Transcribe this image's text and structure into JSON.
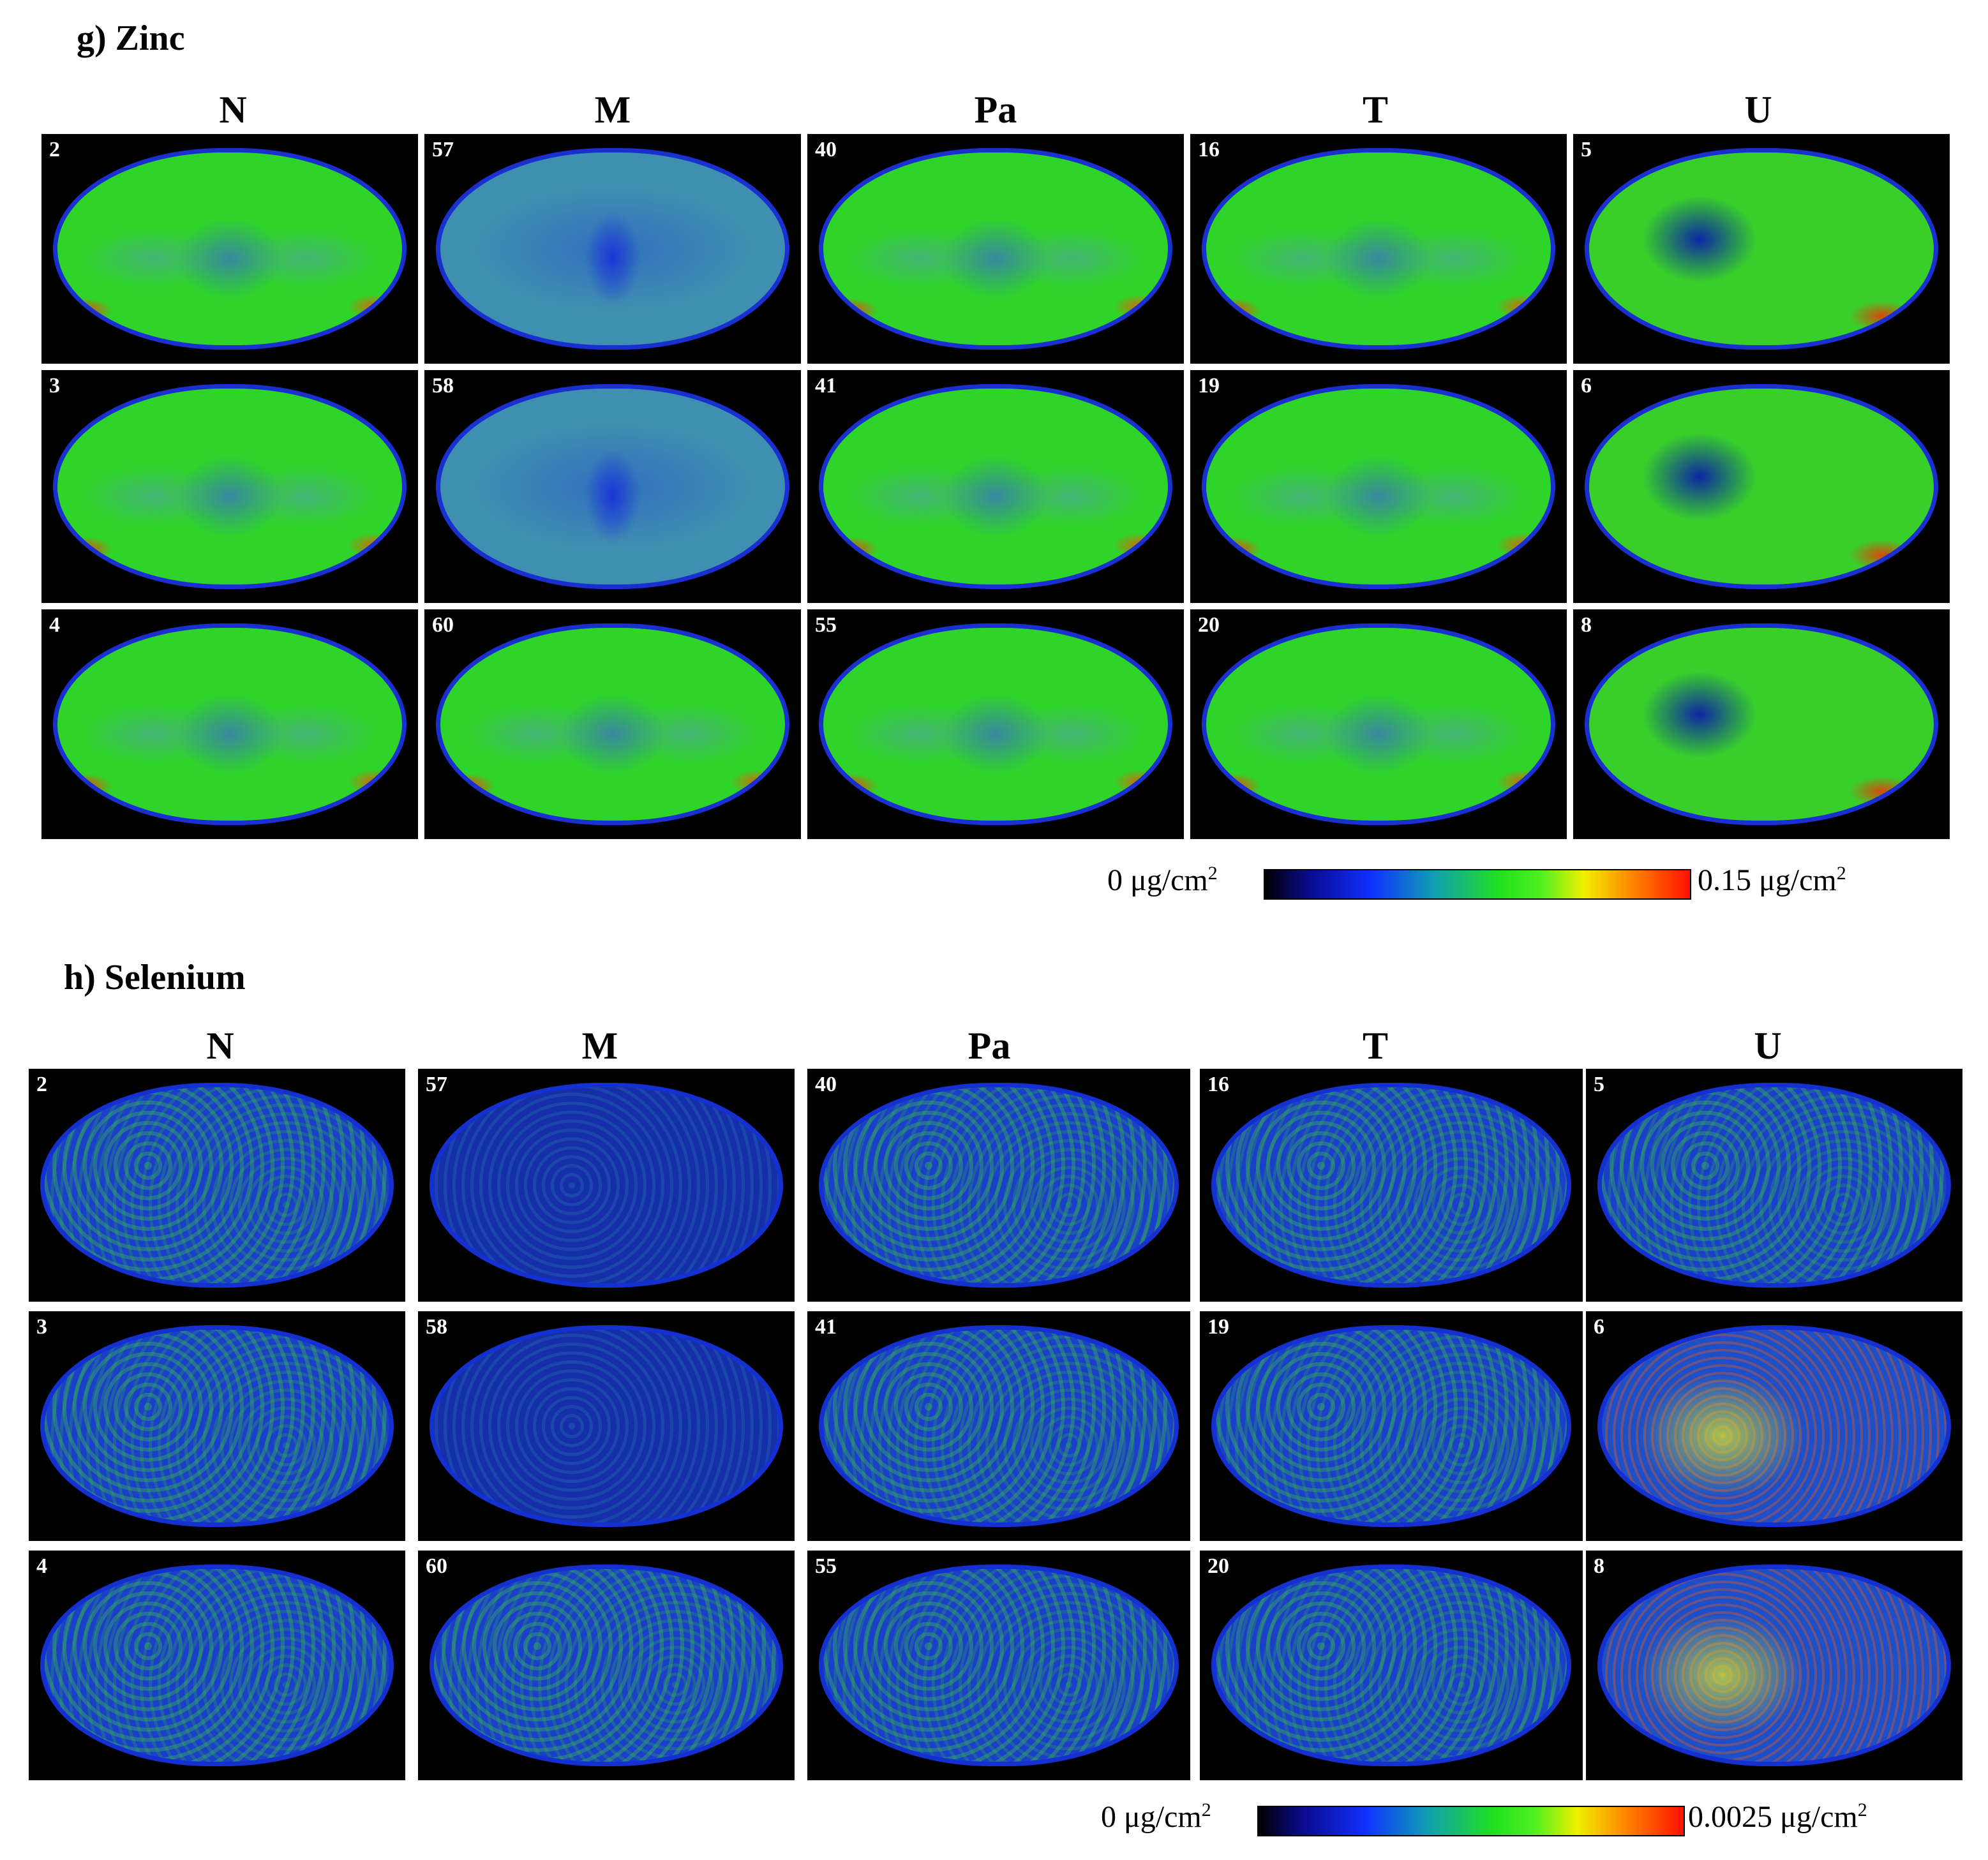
{
  "sections": {
    "zinc": {
      "title": "g) Zinc",
      "columns": [
        "N",
        "M",
        "Pa",
        "T",
        "U"
      ],
      "panels": [
        [
          "2",
          "57",
          "40",
          "16",
          "5"
        ],
        [
          "3",
          "58",
          "41",
          "19",
          "6"
        ],
        [
          "4",
          "60",
          "55",
          "20",
          "8"
        ]
      ],
      "colorbar": {
        "min_label": "0 μg/cm",
        "max_label": "0.15 μg/cm",
        "unit_superscript": "2"
      }
    },
    "selenium": {
      "title": "h) Selenium",
      "columns": [
        "N",
        "M",
        "Pa",
        "T",
        "U"
      ],
      "panels": [
        [
          "2",
          "57",
          "40",
          "16",
          "5"
        ],
        [
          "3",
          "58",
          "41",
          "19",
          "6"
        ],
        [
          "4",
          "60",
          "55",
          "20",
          "8"
        ]
      ],
      "colorbar": {
        "min_label": "0 μg/cm",
        "max_label": "0.0025 μg/cm",
        "unit_superscript": "2"
      }
    }
  },
  "colormap": [
    "#000000",
    "#0a0a8a",
    "#1030ff",
    "#10a0b0",
    "#20e020",
    "#f0f000",
    "#ff8000",
    "#ff1000"
  ]
}
